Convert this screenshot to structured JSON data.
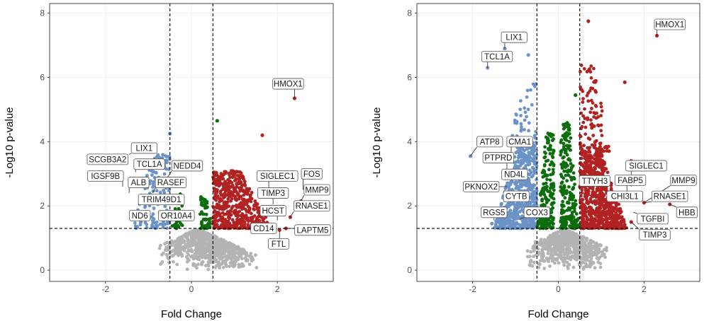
{
  "colors": {
    "up": "#b22222",
    "down": "#6b93c7",
    "mid": "#0b6e0b",
    "ns": "#b3b3b3"
  },
  "chart_data": [
    {
      "type": "scatter",
      "title": "",
      "xlabel": "Fold Change",
      "ylabel": "-Log10 p-value",
      "xlim": [
        -3.3,
        3.3
      ],
      "ylim": [
        -0.35,
        8.3
      ],
      "x_ticks": [
        -2,
        0,
        2
      ],
      "x_tick_labels": [
        "-2",
        "0",
        "2"
      ],
      "y_ticks": [
        0,
        2,
        4,
        6,
        8
      ],
      "y_tick_labels": [
        "0",
        "2",
        "4",
        "6",
        "8"
      ],
      "fc_thresholds": [
        -0.5,
        0.5
      ],
      "p_threshold": 1.3,
      "clouds": [
        {
          "group": "ns",
          "xmin": -1.2,
          "xmax": 1.9,
          "ymax": 1.3,
          "n": 700,
          "seed": 11
        },
        {
          "group": "up",
          "xmin": 0.5,
          "xmax": 1.9,
          "ymin": 1.3,
          "ymax": 3.1,
          "n": 520,
          "seed": 12
        },
        {
          "group": "down",
          "xmin": -1.4,
          "xmax": -0.5,
          "ymin": 1.3,
          "ymax": 3.6,
          "n": 150,
          "seed": 13
        },
        {
          "group": "mid",
          "xmin": -0.5,
          "xmax": -0.2,
          "ymin": 1.3,
          "ymax": 2.5,
          "n": 40,
          "seed": 14
        },
        {
          "group": "mid",
          "xmin": 0.2,
          "xmax": 0.5,
          "ymin": 1.3,
          "ymax": 2.3,
          "n": 55,
          "seed": 15
        }
      ],
      "points": [
        {
          "x": 2.4,
          "y": 5.35,
          "group": "up"
        },
        {
          "x": 1.65,
          "y": 4.2,
          "group": "up"
        },
        {
          "x": 0.6,
          "y": 4.65,
          "group": "mid"
        },
        {
          "x": -0.5,
          "y": 4.25,
          "group": "down"
        },
        {
          "x": 2.55,
          "y": 2.15,
          "group": "up"
        },
        {
          "x": 2.3,
          "y": 1.65,
          "group": "up"
        },
        {
          "x": 2.2,
          "y": 1.3,
          "group": "up"
        },
        {
          "x": 2.05,
          "y": 1.25,
          "group": "up"
        }
      ],
      "labels": [
        {
          "text": "HMOX1",
          "x": 2.4,
          "y": 5.35,
          "label_x": 2.25,
          "label_y": 5.8
        },
        {
          "text": "LIX1",
          "x": -1.45,
          "y": 3.6,
          "label_x": -1.1,
          "label_y": 3.8
        },
        {
          "text": "SCGB3A2",
          "x": -1.55,
          "y": 3.35,
          "label_x": -1.95,
          "label_y": 3.45
        },
        {
          "text": "TCL1A",
          "x": -1.3,
          "y": 3.05,
          "label_x": -0.98,
          "label_y": 3.3
        },
        {
          "text": "NEDD4",
          "x": -0.55,
          "y": 2.9,
          "label_x": -0.1,
          "label_y": 3.25
        },
        {
          "text": "IGSF9B",
          "x": -1.6,
          "y": 2.6,
          "label_x": -2.0,
          "label_y": 2.93
        },
        {
          "text": "ALB",
          "x": -1.45,
          "y": 2.4,
          "label_x": -1.23,
          "label_y": 2.73
        },
        {
          "text": "RASEF",
          "x": -0.9,
          "y": 2.4,
          "label_x": -0.48,
          "label_y": 2.73
        },
        {
          "text": "TRIM49D1",
          "x": -1.15,
          "y": 2.1,
          "label_x": -0.7,
          "label_y": 2.2
        },
        {
          "text": "ND6",
          "x": -1.3,
          "y": 1.65,
          "label_x": -1.2,
          "label_y": 1.7
        },
        {
          "text": "OR10A4",
          "x": -0.65,
          "y": 1.6,
          "label_x": -0.35,
          "label_y": 1.7
        },
        {
          "text": "SIGLEC1",
          "x": 1.8,
          "y": 2.5,
          "label_x": 2.0,
          "label_y": 2.93
        },
        {
          "text": "FOS",
          "x": 2.6,
          "y": 2.5,
          "label_x": 2.8,
          "label_y": 3.0
        },
        {
          "text": "TIMP3",
          "x": 1.9,
          "y": 2.05,
          "label_x": 1.9,
          "label_y": 2.4
        },
        {
          "text": "MMP9",
          "x": 2.55,
          "y": 2.15,
          "label_x": 2.92,
          "label_y": 2.5
        },
        {
          "text": "RNASE1",
          "x": 2.3,
          "y": 1.65,
          "label_x": 2.8,
          "label_y": 2.0
        },
        {
          "text": "HCST",
          "x": 2.0,
          "y": 1.55,
          "label_x": 1.9,
          "label_y": 1.85
        },
        {
          "text": "CD14",
          "x": 2.0,
          "y": 1.28,
          "label_x": 1.68,
          "label_y": 1.3
        },
        {
          "text": "LAPTM5",
          "x": 2.2,
          "y": 1.3,
          "label_x": 2.82,
          "label_y": 1.25
        },
        {
          "text": "FTL",
          "x": 2.05,
          "y": 1.25,
          "label_x": 2.03,
          "label_y": 0.82
        }
      ]
    },
    {
      "type": "scatter",
      "title": "",
      "xlabel": "Fold Change",
      "ylabel": "-Log10 p-value",
      "xlim": [
        -3.3,
        3.3
      ],
      "ylim": [
        -0.35,
        8.3
      ],
      "x_ticks": [
        -2,
        0,
        2
      ],
      "x_tick_labels": [
        "-2",
        "0",
        "2"
      ],
      "y_ticks": [
        0,
        2,
        4,
        6,
        8
      ],
      "y_tick_labels": [
        "0",
        "2",
        "4",
        "6",
        "8"
      ],
      "fc_thresholds": [
        -0.5,
        0.5
      ],
      "p_threshold": 1.3,
      "clouds": [
        {
          "group": "ns",
          "xmin": -1.1,
          "xmax": 1.5,
          "ymax": 1.3,
          "n": 650,
          "seed": 21
        },
        {
          "group": "down",
          "xmin": -1.5,
          "xmax": -0.5,
          "ymin": 1.3,
          "ymax": 3.9,
          "n": 620,
          "seed": 22
        },
        {
          "group": "down",
          "xmin": -1.2,
          "xmax": -0.5,
          "ymin": 3.9,
          "ymax": 5.8,
          "n": 60,
          "seed": 23
        },
        {
          "group": "up",
          "xmin": 0.5,
          "xmax": 1.6,
          "ymin": 1.3,
          "ymax": 3.7,
          "n": 820,
          "seed": 24
        },
        {
          "group": "up",
          "xmin": 0.5,
          "xmax": 1.2,
          "ymin": 3.7,
          "ymax": 6.5,
          "n": 110,
          "seed": 25
        },
        {
          "group": "mid",
          "xmin": -0.5,
          "xmax": -0.1,
          "ymin": 1.3,
          "ymax": 4.3,
          "n": 200,
          "seed": 26
        },
        {
          "group": "mid",
          "xmin": 0.05,
          "xmax": 0.5,
          "ymin": 1.3,
          "ymax": 4.6,
          "n": 230,
          "seed": 27
        }
      ],
      "points": [
        {
          "x": 2.3,
          "y": 7.3,
          "group": "up"
        },
        {
          "x": 0.7,
          "y": 7.75,
          "group": "up"
        },
        {
          "x": 0.4,
          "y": 5.45,
          "group": "mid"
        },
        {
          "x": -1.25,
          "y": 6.9,
          "group": "down"
        },
        {
          "x": -1.65,
          "y": 6.3,
          "group": "down"
        },
        {
          "x": -0.7,
          "y": 6.7,
          "group": "down"
        },
        {
          "x": 1.55,
          "y": 5.85,
          "group": "up"
        },
        {
          "x": 1.7,
          "y": 3.4,
          "group": "up"
        },
        {
          "x": 2.0,
          "y": 2.1,
          "group": "up"
        },
        {
          "x": 2.6,
          "y": 2.05,
          "group": "up"
        },
        {
          "x": 1.7,
          "y": 1.5,
          "group": "up"
        },
        {
          "x": -2.05,
          "y": 3.55,
          "group": "down"
        },
        {
          "x": -1.45,
          "y": 1.5,
          "group": "down"
        },
        {
          "x": -1.55,
          "y": 1.45,
          "group": "down"
        }
      ],
      "labels": [
        {
          "text": "HMOX1",
          "x": 2.3,
          "y": 7.3,
          "label_x": 2.6,
          "label_y": 7.65
        },
        {
          "text": "LIX1",
          "x": -1.25,
          "y": 6.9,
          "label_x": -1.03,
          "label_y": 7.25
        },
        {
          "text": "TCL1A",
          "x": -1.65,
          "y": 6.3,
          "label_x": -1.43,
          "label_y": 6.65
        },
        {
          "text": "ATP8",
          "x": -2.05,
          "y": 3.55,
          "label_x": -1.6,
          "label_y": 4.0
        },
        {
          "text": "CMA1",
          "x": -1.1,
          "y": 3.55,
          "label_x": -0.9,
          "label_y": 4.0
        },
        {
          "text": "PTPRD",
          "x": -1.2,
          "y": 3.1,
          "label_x": -1.4,
          "label_y": 3.5
        },
        {
          "text": "ND4L",
          "x": -1.2,
          "y": 2.9,
          "label_x": -1.02,
          "label_y": 2.98
        },
        {
          "text": "PKNOX2",
          "x": -1.2,
          "y": 2.6,
          "label_x": -1.8,
          "label_y": 2.6
        },
        {
          "text": "CYTB",
          "x": -1.1,
          "y": 2.35,
          "label_x": -0.98,
          "label_y": 2.3
        },
        {
          "text": "RGS5",
          "x": -1.5,
          "y": 1.55,
          "label_x": -1.5,
          "label_y": 1.8
        },
        {
          "text": "COX3",
          "x": -0.9,
          "y": 1.6,
          "label_x": -0.5,
          "label_y": 1.8
        },
        {
          "text": "TTYH3",
          "x": 0.8,
          "y": 2.6,
          "label_x": 0.85,
          "label_y": 2.78
        },
        {
          "text": "SIGLEC1",
          "x": 1.7,
          "y": 2.6,
          "label_x": 2.05,
          "label_y": 3.25
        },
        {
          "text": "FABP5",
          "x": 1.6,
          "y": 2.3,
          "label_x": 1.68,
          "label_y": 2.8
        },
        {
          "text": "MMP9",
          "x": 2.0,
          "y": 2.1,
          "label_x": 2.92,
          "label_y": 2.8
        },
        {
          "text": "CHI3L1",
          "x": 1.4,
          "y": 2.15,
          "label_x": 1.55,
          "label_y": 2.3
        },
        {
          "text": "RNASE1",
          "x": 2.0,
          "y": 2.1,
          "label_x": 2.6,
          "label_y": 2.3
        },
        {
          "text": "HBB",
          "x": 2.6,
          "y": 2.05,
          "label_x": 3.0,
          "label_y": 1.8
        },
        {
          "text": "TGFBI",
          "x": 1.75,
          "y": 1.8,
          "label_x": 2.2,
          "label_y": 1.6
        },
        {
          "text": "TIMP3",
          "x": 1.7,
          "y": 1.5,
          "label_x": 2.25,
          "label_y": 1.1
        }
      ]
    }
  ]
}
